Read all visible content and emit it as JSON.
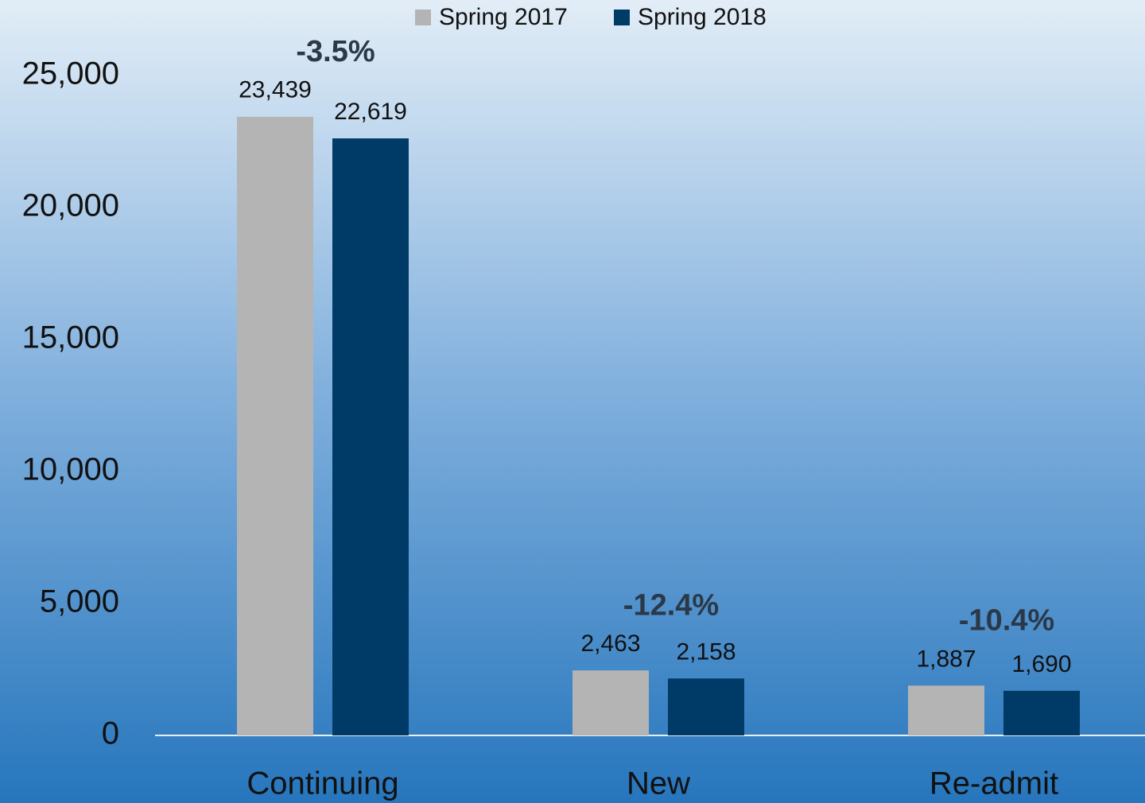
{
  "chart_data": {
    "type": "bar",
    "categories": [
      "Continuing",
      "New",
      "Re-admit"
    ],
    "series": [
      {
        "name": "Spring 2017",
        "color": "#b4b4b4",
        "values": [
          23439,
          2463,
          1887
        ],
        "value_labels": [
          "23,439",
          "2,463",
          "1,887"
        ]
      },
      {
        "name": "Spring 2018",
        "color": "#003b68",
        "values": [
          22619,
          2158,
          1690
        ],
        "value_labels": [
          "22,619",
          "2,158",
          "1,690"
        ]
      }
    ],
    "annotations": [
      "-3.5%",
      "-12.4%",
      "-10.4%"
    ],
    "ylim": [
      0,
      25000
    ],
    "yticks": [
      0,
      {
        "value": 5000,
        "label": "5,000"
      },
      {
        "value": 10000,
        "label": "10,000"
      },
      {
        "value": 15000,
        "label": "15,000"
      },
      {
        "value": 20000,
        "label": "20,000"
      },
      {
        "value": 25000,
        "label": "25,000"
      }
    ],
    "legend": "top"
  }
}
